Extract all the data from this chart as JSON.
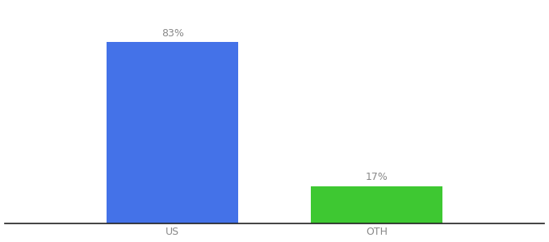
{
  "categories": [
    "US",
    "OTH"
  ],
  "values": [
    83,
    17
  ],
  "bar_colors": [
    "#4472e8",
    "#3ec832"
  ],
  "labels": [
    "83%",
    "17%"
  ],
  "background_color": "#ffffff",
  "text_color": "#888888",
  "label_fontsize": 9,
  "tick_fontsize": 9,
  "ylim": [
    0,
    100
  ],
  "bar_width": 0.22,
  "x_positions": [
    0.28,
    0.62
  ],
  "xlim": [
    0.0,
    0.9
  ]
}
